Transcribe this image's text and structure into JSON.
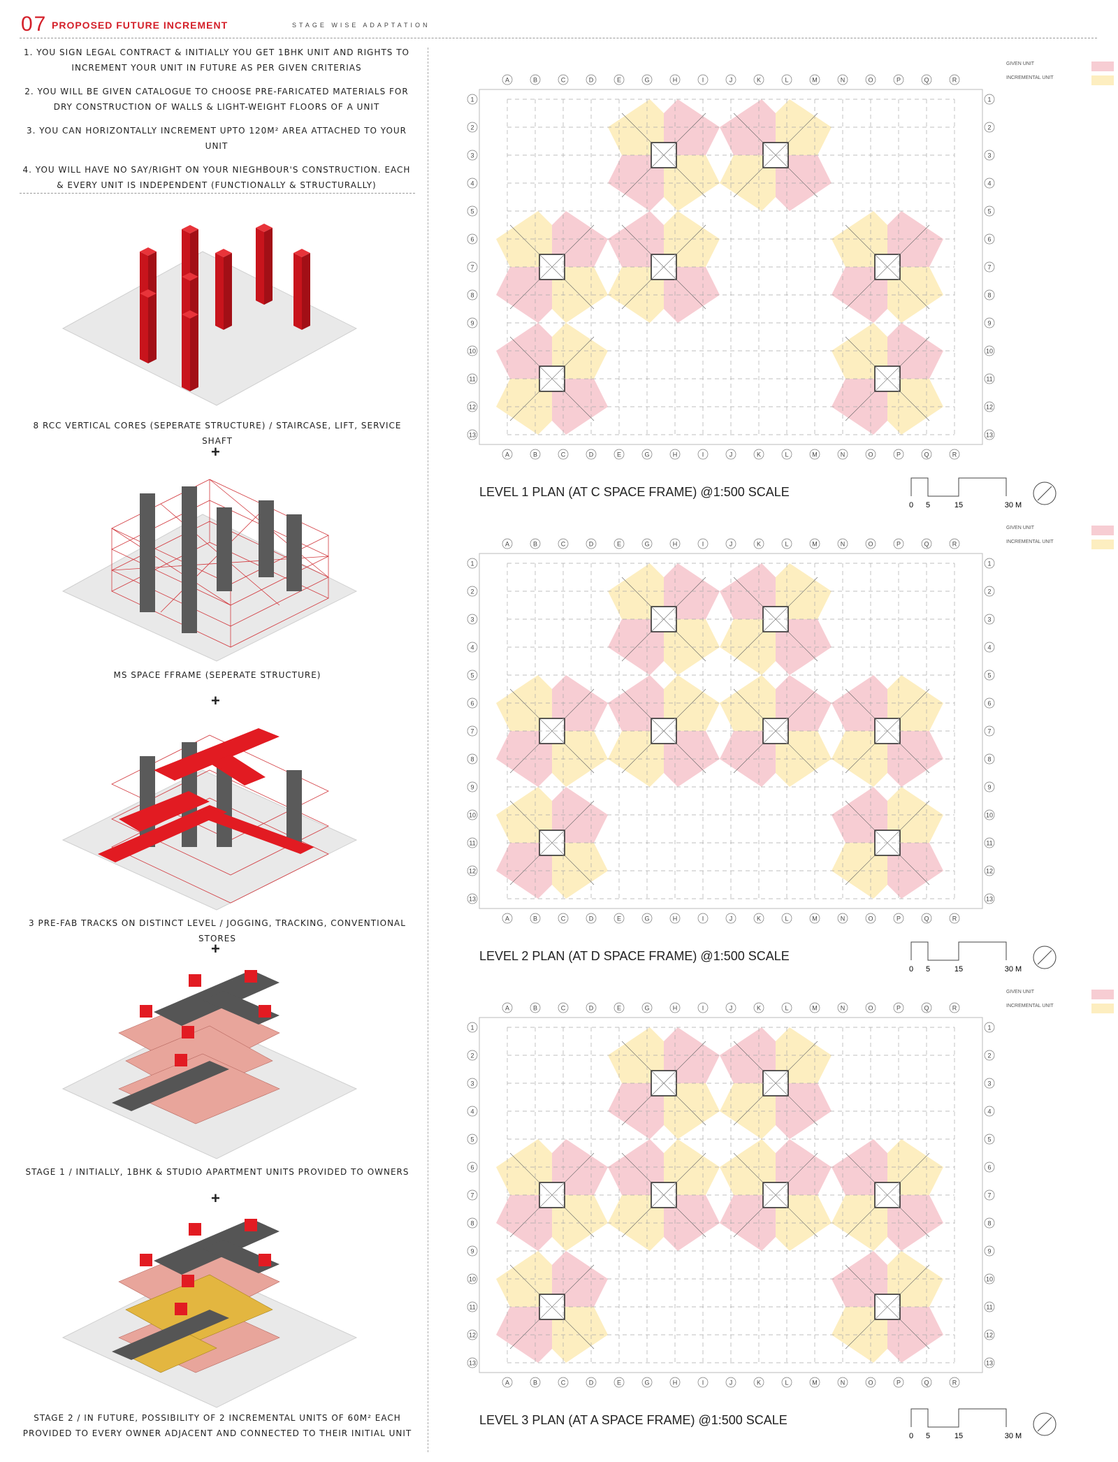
{
  "header": {
    "number": "07",
    "title": "PROPOSED FUTURE INCREMENT",
    "subtitle": "STAGE WISE ADAPTATION"
  },
  "steps": [
    "1. YOU SIGN LEGAL CONTRACT & INITIALLY YOU GET 1BHK UNIT AND RIGHTS TO INCREMENT YOUR UNIT IN FUTURE AS PER GIVEN CRITERIAS",
    "2. YOU WILL BE GIVEN CATALOGUE TO CHOOSE PRE-FARICATED MATERIALS FOR DRY CONSTRUCTION OF WALLS & LIGHT-WEIGHT FLOORS OF A UNIT",
    "3. YOU CAN HORIZONTALLY INCREMENT UPTO 120M² AREA ATTACHED TO YOUR UNIT",
    "4. YOU WILL HAVE NO SAY/RIGHT ON YOUR NIEGHBOUR'S CONSTRUCTION. EACH & EVERY UNIT IS INDEPENDENT (FUNCTIONALLY & STRUCTURALLY)"
  ],
  "stages": [
    {
      "caption": "8 RCC VERTICAL CORES (SEPERATE STRUCTURE) / STAIRCASE, LIFT, SERVICE SHAFT"
    },
    {
      "caption": "MS SPACE FFRAME (SEPERATE STRUCTURE)"
    },
    {
      "caption": "3 PRE-FAB TRACKS ON DISTINCT LEVEL / JOGGING, TRACKING, CONVENTIONAL STORES"
    },
    {
      "caption": "STAGE 1 / INITIALLY, 1BHK & STUDIO APARTMENT UNITS PROVIDED TO OWNERS"
    },
    {
      "caption": "STAGE 2 / IN FUTURE, POSSIBILITY OF 2 INCREMENTAL UNITS OF 60M² EACH PROVIDED TO EVERY OWNER ADJACENT AND CONNECTED TO THEIR INITIAL UNIT"
    }
  ],
  "plus_sign": "+",
  "plans": [
    {
      "title": "LEVEL 1 PLAN (AT C SPACE FRAME) @1:500 SCALE"
    },
    {
      "title": "LEVEL 2 PLAN (AT D SPACE FRAME) @1:500 SCALE"
    },
    {
      "title": "LEVEL 3 PLAN (AT A SPACE FRAME) @1:500 SCALE"
    }
  ],
  "grid": {
    "columns": [
      "A",
      "B",
      "C",
      "D",
      "E",
      "G",
      "H",
      "I",
      "J",
      "K",
      "L",
      "M",
      "N",
      "O",
      "P",
      "Q",
      "R"
    ],
    "rows": [
      "1",
      "2",
      "3",
      "4",
      "5",
      "6",
      "7",
      "8",
      "9",
      "10",
      "11",
      "12",
      "13"
    ]
  },
  "legend": {
    "given": "GIVEN UNIT",
    "incremental": "INCREMENTAL UNIT",
    "given_color": "#f7cdd3",
    "incremental_color": "#fdeec0"
  },
  "scale": {
    "labels": [
      "0",
      "5",
      "15",
      "30 M"
    ]
  },
  "colors": {
    "accent": "#d4202a",
    "core": "#c8141c",
    "track": "#e21b22",
    "slab": "#666666"
  }
}
